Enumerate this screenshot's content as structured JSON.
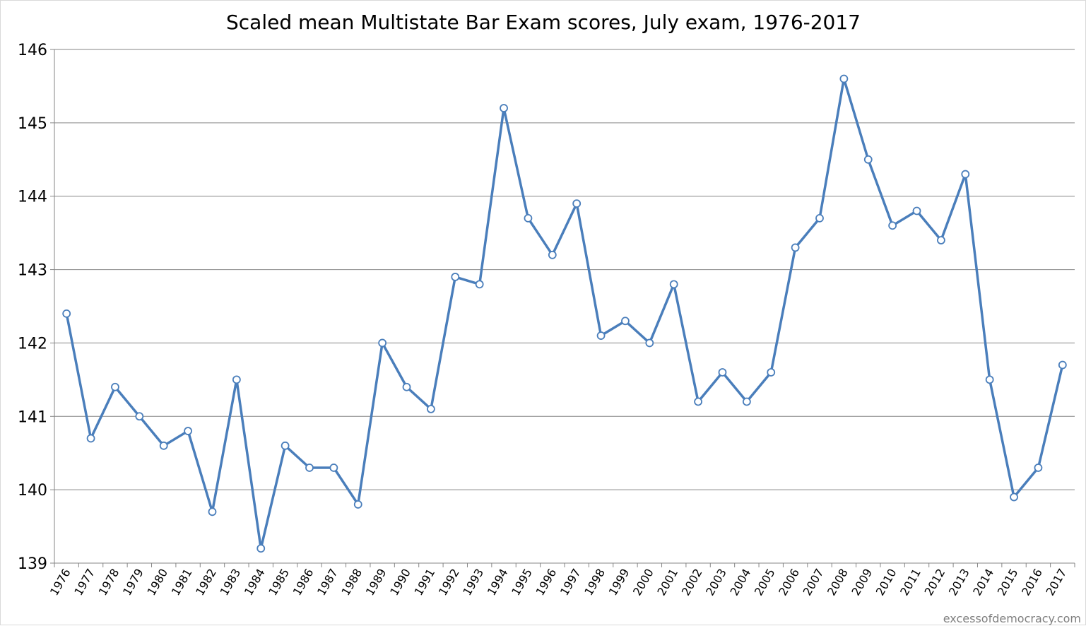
{
  "chart_data": {
    "type": "line",
    "title": "Scaled mean Multistate Bar Exam scores, July exam, 1976-2017",
    "xlabel": "",
    "ylabel": "",
    "ylim": [
      139,
      146
    ],
    "y_ticks": [
      "139",
      "140",
      "141",
      "142",
      "143",
      "144",
      "145",
      "146"
    ],
    "grid": "horizontal",
    "legend": "none",
    "line_color": "#4a7ebb",
    "marker_fill": "#ffffff",
    "categories": [
      "1976",
      "1977",
      "1978",
      "1979",
      "1980",
      "1981",
      "1982",
      "1983",
      "1984",
      "1985",
      "1986",
      "1987",
      "1988",
      "1989",
      "1990",
      "1991",
      "1992",
      "1993",
      "1994",
      "1995",
      "1996",
      "1997",
      "1998",
      "1999",
      "2000",
      "2001",
      "2002",
      "2003",
      "2004",
      "2005",
      "2006",
      "2007",
      "2008",
      "2009",
      "2010",
      "2011",
      "2012",
      "2013",
      "2014",
      "2015",
      "2016",
      "2017"
    ],
    "series": [
      {
        "values": [
          142.4,
          140.7,
          141.4,
          141.0,
          140.6,
          140.8,
          139.7,
          141.5,
          139.2,
          140.6,
          140.3,
          140.3,
          139.8,
          142.0,
          141.4,
          141.1,
          142.9,
          142.8,
          145.2,
          143.7,
          143.2,
          143.9,
          142.1,
          142.3,
          142.0,
          142.8,
          141.2,
          141.6,
          141.2,
          141.6,
          143.3,
          143.7,
          145.6,
          144.5,
          143.6,
          143.8,
          143.4,
          144.3,
          141.5,
          139.9,
          140.3,
          141.7
        ]
      }
    ]
  },
  "watermark": "excessofdemocracy.com"
}
